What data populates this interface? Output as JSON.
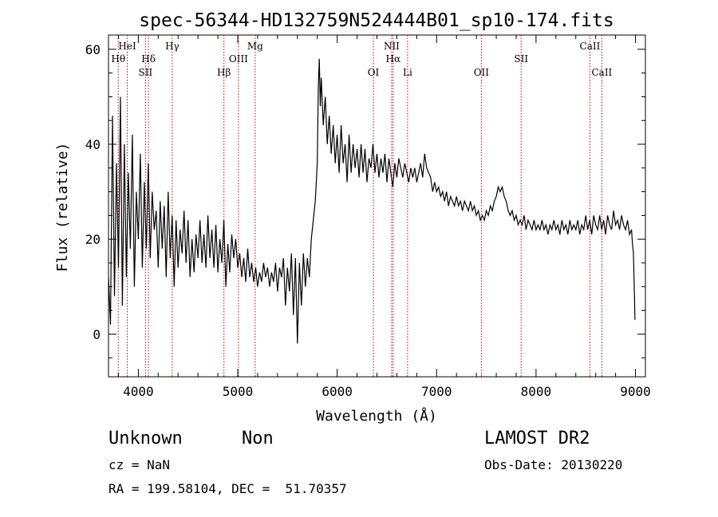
{
  "chart_data": {
    "type": "line",
    "title": "spec-56344-HD132759N524444B01_sp10-174.fits",
    "xlabel": "Wavelength (Å)",
    "ylabel": "Flux (relative)",
    "xlim": [
      3700,
      9100
    ],
    "ylim": [
      -9,
      63
    ],
    "xticks": [
      4000,
      5000,
      6000,
      7000,
      8000,
      9000
    ],
    "yticks": [
      0,
      20,
      40,
      60
    ],
    "line_color": "#000000",
    "marker_color": "#cc0000",
    "spectrum": [
      [
        3700,
        12
      ],
      [
        3720,
        2
      ],
      [
        3740,
        46
      ],
      [
        3760,
        8
      ],
      [
        3780,
        36
      ],
      [
        3800,
        14
      ],
      [
        3820,
        50
      ],
      [
        3840,
        6
      ],
      [
        3860,
        40
      ],
      [
        3880,
        12
      ],
      [
        3900,
        34
      ],
      [
        3920,
        18
      ],
      [
        3940,
        42
      ],
      [
        3960,
        10
      ],
      [
        3980,
        30
      ],
      [
        4000,
        20
      ],
      [
        4020,
        38
      ],
      [
        4040,
        14
      ],
      [
        4060,
        32
      ],
      [
        4080,
        18
      ],
      [
        4100,
        36
      ],
      [
        4120,
        16
      ],
      [
        4140,
        30
      ],
      [
        4160,
        22
      ],
      [
        4180,
        26
      ],
      [
        4200,
        14
      ],
      [
        4220,
        28
      ],
      [
        4240,
        18
      ],
      [
        4260,
        27
      ],
      [
        4280,
        12
      ],
      [
        4300,
        30
      ],
      [
        4320,
        16
      ],
      [
        4340,
        25
      ],
      [
        4360,
        10
      ],
      [
        4380,
        24
      ],
      [
        4400,
        14
      ],
      [
        4420,
        22
      ],
      [
        4440,
        17
      ],
      [
        4460,
        26
      ],
      [
        4480,
        15
      ],
      [
        4500,
        24
      ],
      [
        4520,
        12
      ],
      [
        4540,
        20
      ],
      [
        4560,
        13
      ],
      [
        4580,
        21
      ],
      [
        4600,
        16
      ],
      [
        4620,
        24
      ],
      [
        4640,
        15
      ],
      [
        4660,
        21
      ],
      [
        4680,
        14
      ],
      [
        4700,
        25
      ],
      [
        4720,
        16
      ],
      [
        4740,
        22
      ],
      [
        4760,
        14
      ],
      [
        4780,
        23
      ],
      [
        4800,
        13
      ],
      [
        4820,
        20
      ],
      [
        4840,
        15
      ],
      [
        4860,
        24
      ],
      [
        4880,
        10
      ],
      [
        4900,
        19
      ],
      [
        4920,
        13
      ],
      [
        4940,
        21
      ],
      [
        4960,
        16
      ],
      [
        4980,
        20
      ],
      [
        5000,
        14
      ],
      [
        5020,
        17
      ],
      [
        5040,
        12
      ],
      [
        5060,
        16
      ],
      [
        5080,
        11
      ],
      [
        5100,
        18
      ],
      [
        5120,
        12
      ],
      [
        5140,
        15
      ],
      [
        5160,
        11
      ],
      [
        5180,
        14
      ],
      [
        5200,
        10
      ],
      [
        5220,
        13
      ],
      [
        5240,
        11
      ],
      [
        5260,
        15
      ],
      [
        5280,
        12
      ],
      [
        5300,
        14
      ],
      [
        5320,
        10
      ],
      [
        5340,
        13
      ],
      [
        5360,
        11
      ],
      [
        5380,
        15
      ],
      [
        5400,
        9
      ],
      [
        5420,
        14
      ],
      [
        5440,
        12
      ],
      [
        5460,
        16
      ],
      [
        5480,
        6
      ],
      [
        5500,
        14
      ],
      [
        5520,
        9
      ],
      [
        5540,
        17
      ],
      [
        5560,
        4
      ],
      [
        5580,
        16
      ],
      [
        5600,
        -2
      ],
      [
        5620,
        15
      ],
      [
        5640,
        6
      ],
      [
        5660,
        17
      ],
      [
        5680,
        10
      ],
      [
        5700,
        16
      ],
      [
        5720,
        12
      ],
      [
        5740,
        20
      ],
      [
        5760,
        24
      ],
      [
        5780,
        28
      ],
      [
        5800,
        36
      ],
      [
        5810,
        52
      ],
      [
        5820,
        58
      ],
      [
        5830,
        48
      ],
      [
        5840,
        54
      ],
      [
        5860,
        44
      ],
      [
        5880,
        50
      ],
      [
        5900,
        40
      ],
      [
        5920,
        46
      ],
      [
        5940,
        38
      ],
      [
        5960,
        44
      ],
      [
        5980,
        36
      ],
      [
        6000,
        42
      ],
      [
        6020,
        34
      ],
      [
        6040,
        44
      ],
      [
        6060,
        36
      ],
      [
        6080,
        40
      ],
      [
        6100,
        32
      ],
      [
        6120,
        42
      ],
      [
        6140,
        34
      ],
      [
        6160,
        40
      ],
      [
        6180,
        35
      ],
      [
        6200,
        39
      ],
      [
        6220,
        33
      ],
      [
        6240,
        40
      ],
      [
        6260,
        34
      ],
      [
        6280,
        39
      ],
      [
        6300,
        32
      ],
      [
        6320,
        37
      ],
      [
        6340,
        35
      ],
      [
        6360,
        40
      ],
      [
        6380,
        34
      ],
      [
        6400,
        38
      ],
      [
        6420,
        33
      ],
      [
        6440,
        37
      ],
      [
        6460,
        34
      ],
      [
        6480,
        38
      ],
      [
        6500,
        32
      ],
      [
        6520,
        37
      ],
      [
        6540,
        34
      ],
      [
        6560,
        31
      ],
      [
        6580,
        36
      ],
      [
        6600,
        33
      ],
      [
        6620,
        37
      ],
      [
        6640,
        35
      ],
      [
        6660,
        33
      ],
      [
        6680,
        36
      ],
      [
        6700,
        34
      ],
      [
        6720,
        32
      ],
      [
        6740,
        35
      ],
      [
        6760,
        33
      ],
      [
        6780,
        35
      ],
      [
        6800,
        32
      ],
      [
        6820,
        34
      ],
      [
        6840,
        36
      ],
      [
        6860,
        33
      ],
      [
        6880,
        38
      ],
      [
        6900,
        35
      ],
      [
        6920,
        34
      ],
      [
        6940,
        33
      ],
      [
        6960,
        30
      ],
      [
        6980,
        32
      ],
      [
        7000,
        30
      ],
      [
        7020,
        31
      ],
      [
        7040,
        29
      ],
      [
        7060,
        30
      ],
      [
        7080,
        28
      ],
      [
        7100,
        30
      ],
      [
        7120,
        27
      ],
      [
        7140,
        29
      ],
      [
        7160,
        28
      ],
      [
        7180,
        27
      ],
      [
        7200,
        29
      ],
      [
        7220,
        27
      ],
      [
        7240,
        28
      ],
      [
        7260,
        26
      ],
      [
        7280,
        28
      ],
      [
        7300,
        27
      ],
      [
        7320,
        26
      ],
      [
        7340,
        28
      ],
      [
        7360,
        26
      ],
      [
        7380,
        27
      ],
      [
        7400,
        25
      ],
      [
        7420,
        26
      ],
      [
        7440,
        24
      ],
      [
        7460,
        25
      ],
      [
        7480,
        24
      ],
      [
        7500,
        26
      ],
      [
        7520,
        25
      ],
      [
        7540,
        27
      ],
      [
        7560,
        26
      ],
      [
        7580,
        28
      ],
      [
        7600,
        29
      ],
      [
        7620,
        31
      ],
      [
        7640,
        30
      ],
      [
        7660,
        31
      ],
      [
        7680,
        29
      ],
      [
        7700,
        28
      ],
      [
        7720,
        26
      ],
      [
        7740,
        25
      ],
      [
        7760,
        26
      ],
      [
        7780,
        24
      ],
      [
        7800,
        25
      ],
      [
        7820,
        23
      ],
      [
        7840,
        24
      ],
      [
        7860,
        23
      ],
      [
        7880,
        25
      ],
      [
        7900,
        22
      ],
      [
        7920,
        24
      ],
      [
        7940,
        23
      ],
      [
        7960,
        22
      ],
      [
        7980,
        24
      ],
      [
        8000,
        22
      ],
      [
        8020,
        23
      ],
      [
        8040,
        22
      ],
      [
        8060,
        24
      ],
      [
        8080,
        22
      ],
      [
        8100,
        23
      ],
      [
        8120,
        21
      ],
      [
        8140,
        23
      ],
      [
        8160,
        22
      ],
      [
        8180,
        24
      ],
      [
        8200,
        22
      ],
      [
        8220,
        23
      ],
      [
        8240,
        21
      ],
      [
        8260,
        24
      ],
      [
        8280,
        22
      ],
      [
        8300,
        23
      ],
      [
        8320,
        21
      ],
      [
        8340,
        24
      ],
      [
        8360,
        22
      ],
      [
        8380,
        23
      ],
      [
        8400,
        22
      ],
      [
        8420,
        24
      ],
      [
        8440,
        21
      ],
      [
        8460,
        23
      ],
      [
        8480,
        22
      ],
      [
        8500,
        25
      ],
      [
        8520,
        22
      ],
      [
        8540,
        24
      ],
      [
        8560,
        21
      ],
      [
        8580,
        25
      ],
      [
        8600,
        23
      ],
      [
        8620,
        22
      ],
      [
        8640,
        25
      ],
      [
        8660,
        22
      ],
      [
        8680,
        24
      ],
      [
        8700,
        21
      ],
      [
        8720,
        25
      ],
      [
        8740,
        23
      ],
      [
        8760,
        22
      ],
      [
        8780,
        26
      ],
      [
        8800,
        23
      ],
      [
        8820,
        24
      ],
      [
        8840,
        22
      ],
      [
        8860,
        25
      ],
      [
        8880,
        23
      ],
      [
        8900,
        22
      ],
      [
        8920,
        24
      ],
      [
        8940,
        21
      ],
      [
        8960,
        22
      ],
      [
        8970,
        19
      ],
      [
        8980,
        17
      ],
      [
        8990,
        8
      ],
      [
        8995,
        3
      ]
    ],
    "lines": [
      {
        "name": "Hθ",
        "wavelength": 3798,
        "row": 2
      },
      {
        "name": "HeI",
        "wavelength": 3889,
        "row": 1
      },
      {
        "name": "SII",
        "wavelength": 4072,
        "row": 3
      },
      {
        "name": "Hδ",
        "wavelength": 4102,
        "row": 2
      },
      {
        "name": "Hγ",
        "wavelength": 4341,
        "row": 1
      },
      {
        "name": "Hβ",
        "wavelength": 4861,
        "row": 3
      },
      {
        "name": "OIII",
        "wavelength": 5007,
        "row": 2
      },
      {
        "name": "Mg",
        "wavelength": 5175,
        "row": 1
      },
      {
        "name": "OI",
        "wavelength": 6364,
        "row": 3
      },
      {
        "name": "NII",
        "wavelength": 6548,
        "row": 1
      },
      {
        "name": "Hα",
        "wavelength": 6563,
        "row": 2
      },
      {
        "name": "Li",
        "wavelength": 6708,
        "row": 3
      },
      {
        "name": "OII",
        "wavelength": 7450,
        "row": 3
      },
      {
        "name": "SII",
        "wavelength": 7850,
        "row": 2
      },
      {
        "name": "CaII",
        "wavelength": 8542,
        "row": 1
      },
      {
        "name": "CaII",
        "wavelength": 8662,
        "row": 3
      }
    ]
  },
  "info": {
    "object_class": "Unknown",
    "subclass": "Non",
    "survey": "LAMOST DR2",
    "cz": "cz = NaN",
    "obs_date": "Obs-Date: 20130220",
    "radec": "RA = 199.58104, DEC =  51.70357"
  }
}
